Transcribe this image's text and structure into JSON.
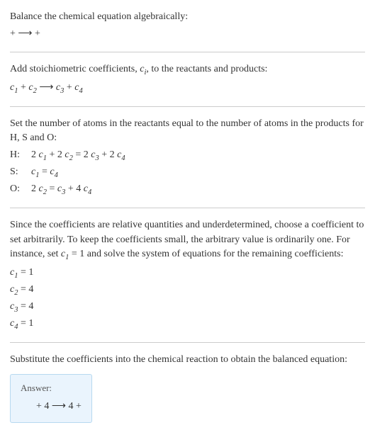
{
  "text_color": "#333333",
  "bg_color": "#ffffff",
  "separator_color": "#cccccc",
  "answer_box": {
    "bg": "#eaf4fd",
    "border": "#b7d9f0",
    "label": "Answer:"
  },
  "sections": {
    "s1": {
      "l1": "Balance the chemical equation algebraically:",
      "eq": " +  ⟶  + "
    },
    "s2": {
      "l1_a": "Add stoichiometric coefficients, ",
      "l1_ci": "c",
      "l1_i": "i",
      "l1_b": ", to the reactants and products:",
      "eq_c1": "c",
      "eq_1": "1",
      "eq_plus1": "  + ",
      "eq_c2": "c",
      "eq_2": "2",
      "eq_arrow": "  ⟶ ",
      "eq_c3": "c",
      "eq_3": "3",
      "eq_plus2": "  + ",
      "eq_c4": "c",
      "eq_4": "4"
    },
    "s3": {
      "l1": "Set the number of atoms in the reactants equal to the number of atoms in the products for H, S and O:",
      "rows": {
        "H": {
          "label": "H:",
          "lhs_a": "2 ",
          "c1": "c",
          "s1": "1",
          "p1": " + 2 ",
          "c2": "c",
          "s2": "2",
          "eq": " = 2 ",
          "c3": "c",
          "s3": "3",
          "p2": " + 2 ",
          "c4": "c",
          "s4": "4"
        },
        "S": {
          "label": "S:",
          "c1": "c",
          "s1": "1",
          "eq": " = ",
          "c4": "c",
          "s4": "4"
        },
        "O": {
          "label": "O:",
          "lhs_a": "2 ",
          "c2": "c",
          "s2": "2",
          "eq": " = ",
          "c3": "c",
          "s3": "3",
          "p2": " + 4 ",
          "c4": "c",
          "s4": "4"
        }
      }
    },
    "s4": {
      "l1": "Since the coefficients are relative quantities and underdetermined, choose a coefficient to set arbitrarily. To keep the coefficients small, the arbitrary value is ordinarily one. For instance, set ",
      "l1_c": "c",
      "l1_s": "1",
      "l1_b": " = 1 and solve the system of equations for the remaining coefficients:",
      "r1": {
        "c": "c",
        "s": "1",
        "v": " = 1"
      },
      "r2": {
        "c": "c",
        "s": "2",
        "v": " = 4"
      },
      "r3": {
        "c": "c",
        "s": "3",
        "v": " = 4"
      },
      "r4": {
        "c": "c",
        "s": "4",
        "v": " = 1"
      }
    },
    "s5": {
      "l1": "Substitute the coefficients into the chemical reaction to obtain the balanced equation:",
      "answer_eq": " + 4  ⟶ 4  + "
    }
  }
}
